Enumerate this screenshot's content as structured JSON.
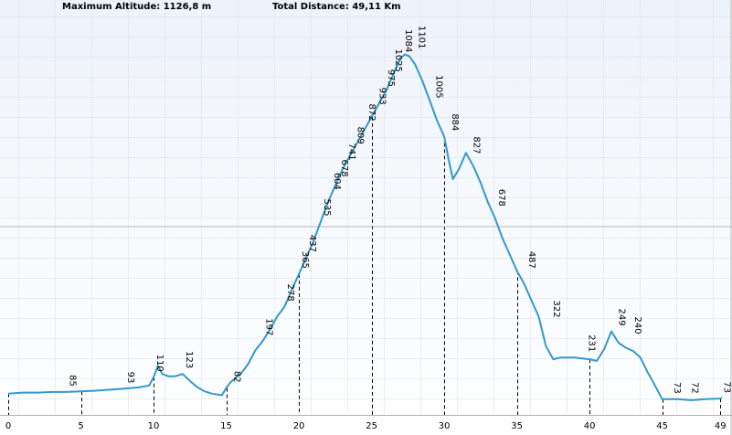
{
  "header": {
    "max_altitude": "Maximum Altitude: 1126,8 m",
    "total_distance": "Total Distance: 49,11 Km"
  },
  "colors": {
    "line": "#3399cc",
    "background_top": "#f4f8fc",
    "background_bottom": "#ffffff",
    "grid": "#d8e2ec",
    "crosshair": "#b8b8b8"
  },
  "chart_data": {
    "type": "line",
    "title": "",
    "xlabel": "",
    "ylabel": "",
    "xlim": [
      0,
      49.11
    ],
    "ylim": [
      0,
      1200
    ],
    "x_ticks": [
      0,
      5,
      10,
      15,
      20,
      25,
      30,
      35,
      40,
      45,
      49
    ],
    "grid": true,
    "series": [
      {
        "x": [
          0.0,
          1.0,
          2.0,
          3.0,
          4.0,
          5.0,
          6.0,
          7.0,
          8.0,
          9.0,
          9.7,
          10.0,
          10.3,
          10.6,
          11.0,
          11.5,
          12.0,
          12.6,
          13.0,
          13.5,
          14.0,
          14.7,
          15.0,
          15.3,
          15.7,
          16.0,
          16.5,
          17.0,
          17.5,
          18.0,
          18.5,
          19.0,
          19.5,
          20.0,
          20.5,
          21.0,
          21.5,
          22.0,
          22.5,
          23.0,
          23.5,
          24.0,
          24.5,
          25.0,
          25.5,
          26.0,
          26.5,
          27.0,
          27.3,
          27.6,
          28.0,
          28.5,
          29.0,
          29.5,
          30.0,
          30.3,
          30.6,
          31.0,
          31.5,
          32.0,
          32.5,
          33.0,
          33.5,
          34.0,
          34.5,
          35.0,
          35.5,
          36.0,
          36.5,
          37.0,
          37.5,
          38.0,
          39.0,
          40.0,
          40.5,
          41.0,
          41.5,
          42.0,
          42.5,
          43.0,
          43.5,
          44.0,
          44.5,
          45.0,
          45.3,
          46.0,
          47.0,
          48.0,
          49.0,
          49.11
        ],
        "y": [
          65,
          68,
          68,
          70,
          70,
          72,
          74,
          77,
          80,
          84,
          90,
          115,
          150,
          125,
          118,
          118,
          125,
          100,
          85,
          72,
          65,
          60,
          82,
          100,
          115,
          125,
          155,
          197,
          225,
          260,
          300,
          330,
          380,
          430,
          480,
          530,
          590,
          650,
          700,
          750,
          790,
          830,
          870,
          910,
          950,
          990,
          1040,
          1090,
          1101,
          1095,
          1070,
          1020,
          960,
          900,
          850,
          780,
          720,
          750,
          800,
          760,
          710,
          650,
          600,
          540,
          490,
          440,
          400,
          350,
          300,
          210,
          170,
          175,
          175,
          170,
          165,
          200,
          255,
          220,
          205,
          195,
          175,
          130,
          90,
          48,
          48,
          48,
          45,
          48,
          50,
          52
        ]
      }
    ],
    "point_labels": [
      {
        "x": 4.0,
        "y": 70,
        "text": "85"
      },
      {
        "x": 8.0,
        "y": 80,
        "text": "93"
      },
      {
        "x": 10.0,
        "y": 115,
        "text": "110"
      },
      {
        "x": 12.0,
        "y": 125,
        "text": "123"
      },
      {
        "x": 15.3,
        "y": 82,
        "text": "82"
      },
      {
        "x": 17.5,
        "y": 225,
        "text": "197"
      },
      {
        "x": 19.0,
        "y": 330,
        "text": "278"
      },
      {
        "x": 20.0,
        "y": 430,
        "text": "365"
      },
      {
        "x": 20.5,
        "y": 480,
        "text": "437"
      },
      {
        "x": 21.5,
        "y": 590,
        "text": "535"
      },
      {
        "x": 22.2,
        "y": 670,
        "text": "604"
      },
      {
        "x": 22.7,
        "y": 710,
        "text": "678"
      },
      {
        "x": 23.2,
        "y": 760,
        "text": "741"
      },
      {
        "x": 23.8,
        "y": 810,
        "text": "809"
      },
      {
        "x": 24.6,
        "y": 880,
        "text": "872"
      },
      {
        "x": 25.3,
        "y": 930,
        "text": "933"
      },
      {
        "x": 25.9,
        "y": 985,
        "text": "975"
      },
      {
        "x": 26.4,
        "y": 1030,
        "text": "1025"
      },
      {
        "x": 27.1,
        "y": 1090,
        "text": "1084"
      },
      {
        "x": 28.0,
        "y": 1101,
        "text": "1101"
      },
      {
        "x": 29.2,
        "y": 950,
        "text": "1005"
      },
      {
        "x": 30.3,
        "y": 850,
        "text": "884"
      },
      {
        "x": 31.8,
        "y": 780,
        "text": "827"
      },
      {
        "x": 33.5,
        "y": 620,
        "text": "678"
      },
      {
        "x": 35.6,
        "y": 430,
        "text": "487"
      },
      {
        "x": 37.3,
        "y": 280,
        "text": "322"
      },
      {
        "x": 39.7,
        "y": 175,
        "text": "231"
      },
      {
        "x": 41.8,
        "y": 255,
        "text": "249"
      },
      {
        "x": 42.9,
        "y": 230,
        "text": "240"
      },
      {
        "x": 45.6,
        "y": 48,
        "text": "73"
      },
      {
        "x": 46.8,
        "y": 48,
        "text": "72"
      },
      {
        "x": 49.0,
        "y": 50,
        "text": "73"
      }
    ]
  }
}
